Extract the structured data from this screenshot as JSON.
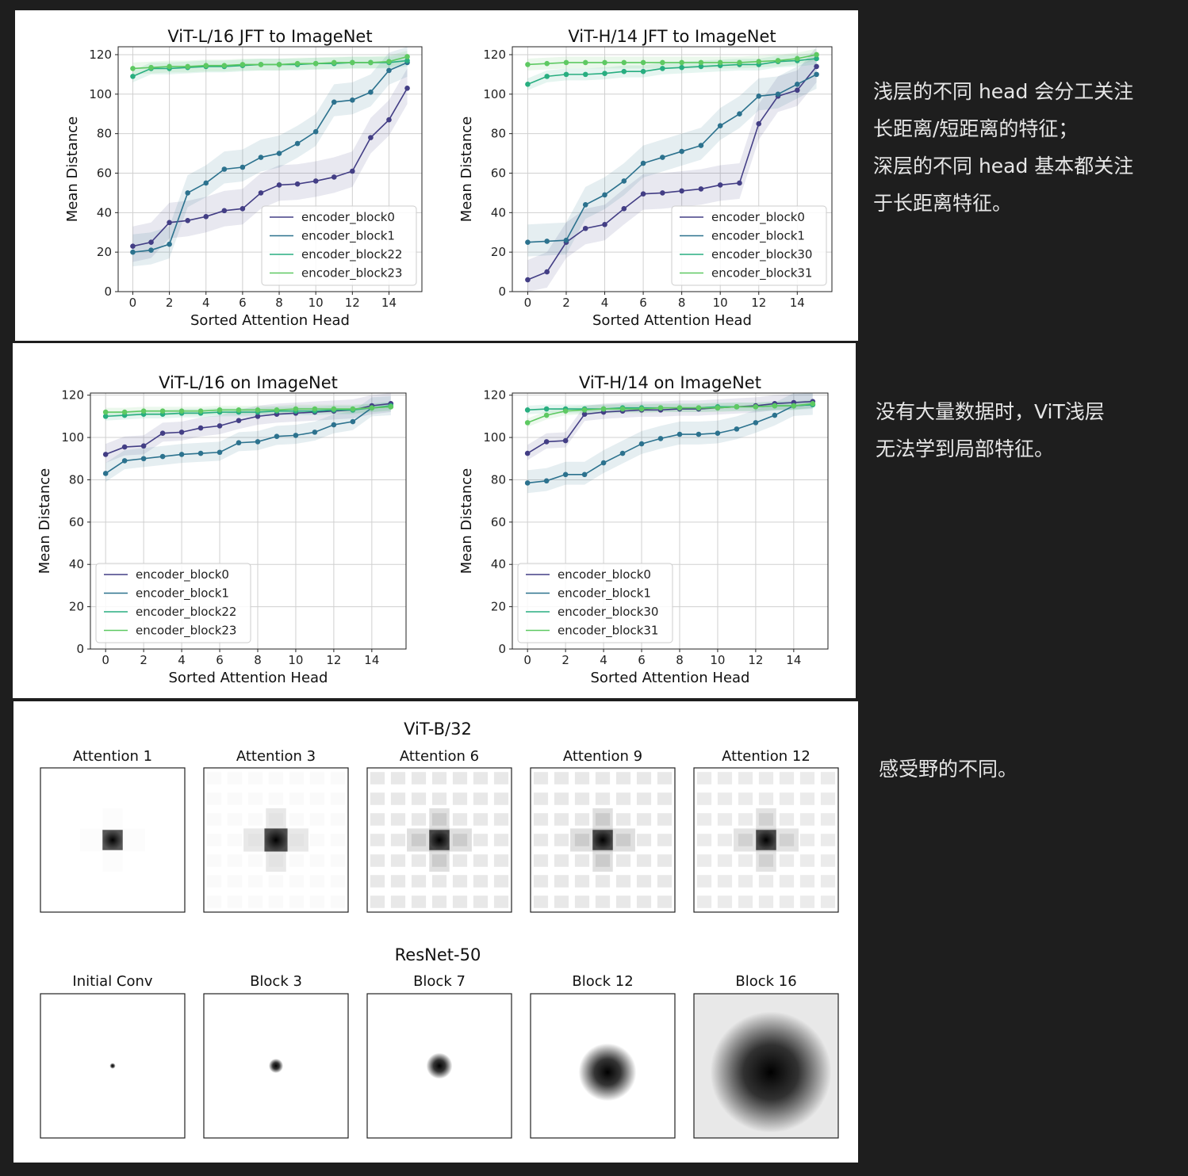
{
  "annotations": {
    "top": [
      "浅层的不同 head 会分工关注",
      "长距离/短距离的特征；",
      "深层的不同 head 基本都关注",
      "于长距离特征。"
    ],
    "middle": [
      "没有大量数据时，ViT浅层",
      "无法学到局部特征。"
    ],
    "bottom": [
      "感受野的不同。"
    ]
  },
  "colors": {
    "encoder_block0": "#433e85",
    "encoder_block1": "#2c728e",
    "encoder_block_mid": "#28ae80",
    "encoder_block_last": "#5ec962"
  },
  "chart_data": [
    {
      "type": "line",
      "title": "ViT-L/16 JFT to ImageNet",
      "xlabel": "Sorted Attention Head",
      "ylabel": "Mean Distance",
      "xlim": [
        -0.8,
        15.8
      ],
      "ylim": [
        0,
        124
      ],
      "xticks": [
        0,
        2,
        4,
        6,
        8,
        10,
        12,
        14
      ],
      "yticks": [
        0,
        20,
        40,
        60,
        80,
        100,
        120
      ],
      "grid": true,
      "legend": "lower-right",
      "x": [
        0,
        1,
        2,
        3,
        4,
        5,
        6,
        7,
        8,
        9,
        10,
        11,
        12,
        13,
        14,
        15
      ],
      "series": [
        {
          "name": "encoder_block0",
          "values": [
            23,
            25,
            35,
            36,
            38,
            41,
            42,
            50,
            54,
            54.5,
            56,
            58,
            61,
            78,
            87,
            103
          ],
          "band": 10
        },
        {
          "name": "encoder_block1",
          "values": [
            20,
            21,
            24,
            50,
            55,
            62,
            63,
            68,
            70,
            75,
            81,
            96,
            97,
            101,
            112,
            116
          ],
          "band": 9
        },
        {
          "name": "encoder_block22",
          "values": [
            109,
            113,
            113,
            113.5,
            114,
            114,
            114.5,
            115,
            115,
            115,
            115.5,
            115.5,
            116,
            116,
            116,
            117
          ],
          "band": 3
        },
        {
          "name": "encoder_block23",
          "values": [
            113,
            113.5,
            114,
            114,
            114.5,
            114.5,
            115,
            115,
            115,
            115.5,
            115.5,
            116,
            116,
            116,
            116.5,
            119
          ],
          "band": 3
        }
      ]
    },
    {
      "type": "line",
      "title": "ViT-H/14 JFT to ImageNet",
      "xlabel": "Sorted Attention Head",
      "ylabel": "Mean Distance",
      "xlim": [
        -0.8,
        15.8
      ],
      "ylim": [
        0,
        124
      ],
      "xticks": [
        0,
        2,
        4,
        6,
        8,
        10,
        12,
        14
      ],
      "yticks": [
        0,
        20,
        40,
        60,
        80,
        100,
        120
      ],
      "grid": true,
      "legend": "lower-right",
      "x": [
        0,
        1,
        2,
        3,
        4,
        5,
        6,
        7,
        8,
        9,
        10,
        11,
        12,
        13,
        14,
        15
      ],
      "series": [
        {
          "name": "encoder_block0",
          "values": [
            6,
            10,
            25,
            32,
            34,
            42,
            49.5,
            50,
            51,
            52,
            54,
            55,
            85,
            99,
            102,
            114
          ],
          "band": 10
        },
        {
          "name": "encoder_block1",
          "values": [
            25,
            25.5,
            26,
            44,
            49,
            56,
            65,
            68,
            71,
            74,
            84,
            90,
            99,
            100,
            105,
            110
          ],
          "band": 9
        },
        {
          "name": "encoder_block30",
          "values": [
            105,
            109,
            110,
            110,
            110.5,
            111.5,
            111.5,
            113,
            113.5,
            114,
            114.5,
            115,
            115,
            116.5,
            117,
            118
          ],
          "band": 3
        },
        {
          "name": "encoder_block31",
          "values": [
            115,
            115.5,
            116,
            116,
            116,
            116,
            116,
            116,
            116,
            116,
            116,
            116,
            116.5,
            117,
            118,
            120
          ],
          "band": 3
        }
      ]
    },
    {
      "type": "line",
      "title": "ViT-L/16 on ImageNet",
      "xlabel": "Sorted Attention Head",
      "ylabel": "Mean Distance",
      "xlim": [
        -0.8,
        15.8
      ],
      "ylim": [
        0,
        121
      ],
      "xticks": [
        0,
        2,
        4,
        6,
        8,
        10,
        12,
        14
      ],
      "yticks": [
        0,
        20,
        40,
        60,
        80,
        100,
        120
      ],
      "grid": true,
      "legend": "lower-left",
      "x": [
        0,
        1,
        2,
        3,
        4,
        5,
        6,
        7,
        8,
        9,
        10,
        11,
        12,
        13,
        14,
        15
      ],
      "series": [
        {
          "name": "encoder_block0",
          "values": [
            92,
            95.5,
            96,
            102,
            102.5,
            104.5,
            105.5,
            108,
            110,
            111,
            111.5,
            112,
            112.5,
            113,
            115,
            116
          ],
          "band": 5
        },
        {
          "name": "encoder_block1",
          "values": [
            83,
            89,
            90,
            91,
            92,
            92.5,
            93,
            97.5,
            98,
            100.5,
            101,
            102.5,
            106,
            107.5,
            114,
            114.5
          ],
          "band": 5
        },
        {
          "name": "encoder_block22",
          "values": [
            110,
            110.5,
            111,
            111,
            111.5,
            111.5,
            112,
            112,
            112,
            112.5,
            112.5,
            112.5,
            113,
            113,
            114,
            115
          ],
          "band": 2
        },
        {
          "name": "encoder_block23",
          "values": [
            112,
            112,
            112.5,
            112.5,
            112.5,
            112.5,
            113,
            113,
            113,
            113,
            113.5,
            113.5,
            113.5,
            113.5,
            114,
            114.5
          ],
          "band": 2
        }
      ]
    },
    {
      "type": "line",
      "title": "ViT-H/14 on ImageNet",
      "xlabel": "Sorted Attention Head",
      "ylabel": "Mean Distance",
      "xlim": [
        -0.8,
        15.8
      ],
      "ylim": [
        0,
        121
      ],
      "xticks": [
        0,
        2,
        4,
        6,
        8,
        10,
        12,
        14
      ],
      "yticks": [
        0,
        20,
        40,
        60,
        80,
        100,
        120
      ],
      "grid": true,
      "legend": "lower-left",
      "x": [
        0,
        1,
        2,
        3,
        4,
        5,
        6,
        7,
        8,
        9,
        10,
        11,
        12,
        13,
        14,
        15
      ],
      "series": [
        {
          "name": "encoder_block0",
          "values": [
            92.5,
            98,
            98.5,
            111,
            112,
            112.5,
            113,
            113,
            113.5,
            113.5,
            114,
            114.5,
            115,
            116,
            116.5,
            117
          ],
          "band": 4
        },
        {
          "name": "encoder_block1",
          "values": [
            78.5,
            79.5,
            82.5,
            82.5,
            88,
            92.5,
            97,
            99.5,
            101.5,
            101.5,
            102,
            104,
            107,
            110.5,
            115,
            115.5
          ],
          "band": 6
        },
        {
          "name": "encoder_block30",
          "values": [
            113,
            113.5,
            113.5,
            113.5,
            113.5,
            114,
            114,
            114,
            114,
            114,
            114.5,
            114.5,
            114.5,
            115,
            115,
            115.5
          ],
          "band": 2
        },
        {
          "name": "encoder_block31",
          "values": [
            107,
            110.5,
            112.5,
            113,
            113.5,
            113.5,
            113.5,
            114,
            114,
            114,
            114,
            114.5,
            114.5,
            115,
            115,
            116
          ],
          "band": 2
        }
      ]
    },
    {
      "type": "heatmap",
      "title": "ViT-B/32",
      "panels": [
        {
          "label": "Attention 1",
          "center_size": 0.14,
          "halo": 0.02,
          "grid_pattern": 0.0
        },
        {
          "label": "Attention 3",
          "center_size": 0.16,
          "halo": 0.18,
          "grid_pattern": 0.02
        },
        {
          "label": "Attention 6",
          "center_size": 0.14,
          "halo": 0.25,
          "grid_pattern": 0.09
        },
        {
          "label": "Attention 9",
          "center_size": 0.14,
          "halo": 0.25,
          "grid_pattern": 0.09
        },
        {
          "label": "Attention 12",
          "center_size": 0.14,
          "halo": 0.22,
          "grid_pattern": 0.08
        }
      ]
    },
    {
      "type": "heatmap",
      "title": "ResNet-50",
      "panels": [
        {
          "label": "Initial Conv",
          "spread": 0.02
        },
        {
          "label": "Block 3",
          "spread": 0.05
        },
        {
          "label": "Block 7",
          "spread": 0.09
        },
        {
          "label": "Block 12",
          "spread": 0.2
        },
        {
          "label": "Block 16",
          "spread": 0.42
        }
      ]
    }
  ]
}
